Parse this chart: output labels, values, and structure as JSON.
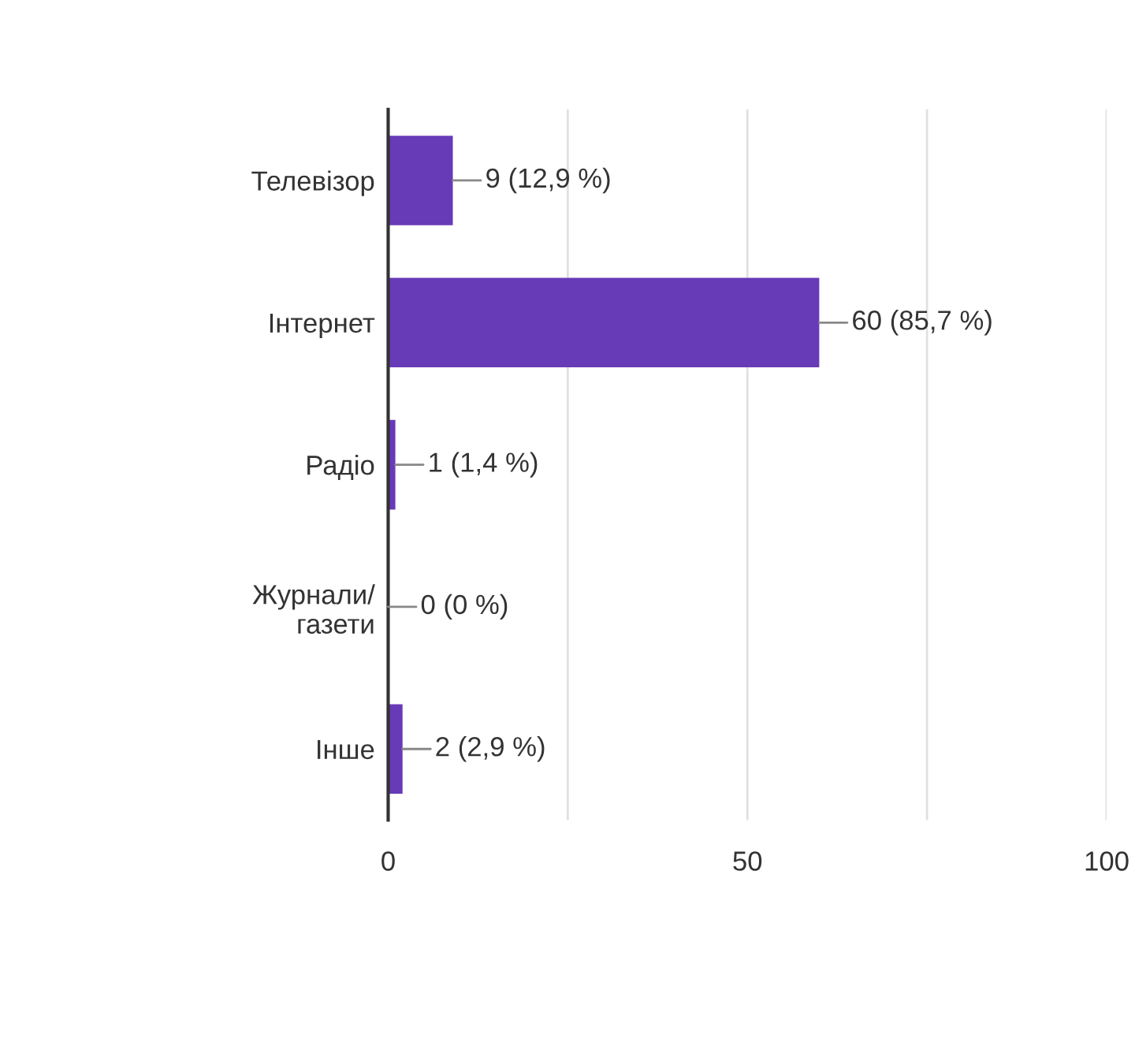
{
  "chart_data": {
    "type": "bar",
    "orientation": "horizontal",
    "categories": [
      "Телевізор",
      "Інтернет",
      "Радіо",
      "Журнали/\nгазети",
      "Інше"
    ],
    "values": [
      9,
      60,
      1,
      0,
      2
    ],
    "value_labels": [
      "9 (12,9 %)",
      "60 (85,7 %)",
      "1 (1,4 %)",
      "0 (0 %)",
      "2 (2,9 %)"
    ],
    "color": "#673ab7",
    "xlim": [
      0,
      100
    ],
    "xticks": [
      0,
      {
        "value": 25,
        "label": null
      },
      50,
      {
        "value": 75,
        "label": null
      },
      100
    ],
    "grid": "x",
    "legend": false
  }
}
